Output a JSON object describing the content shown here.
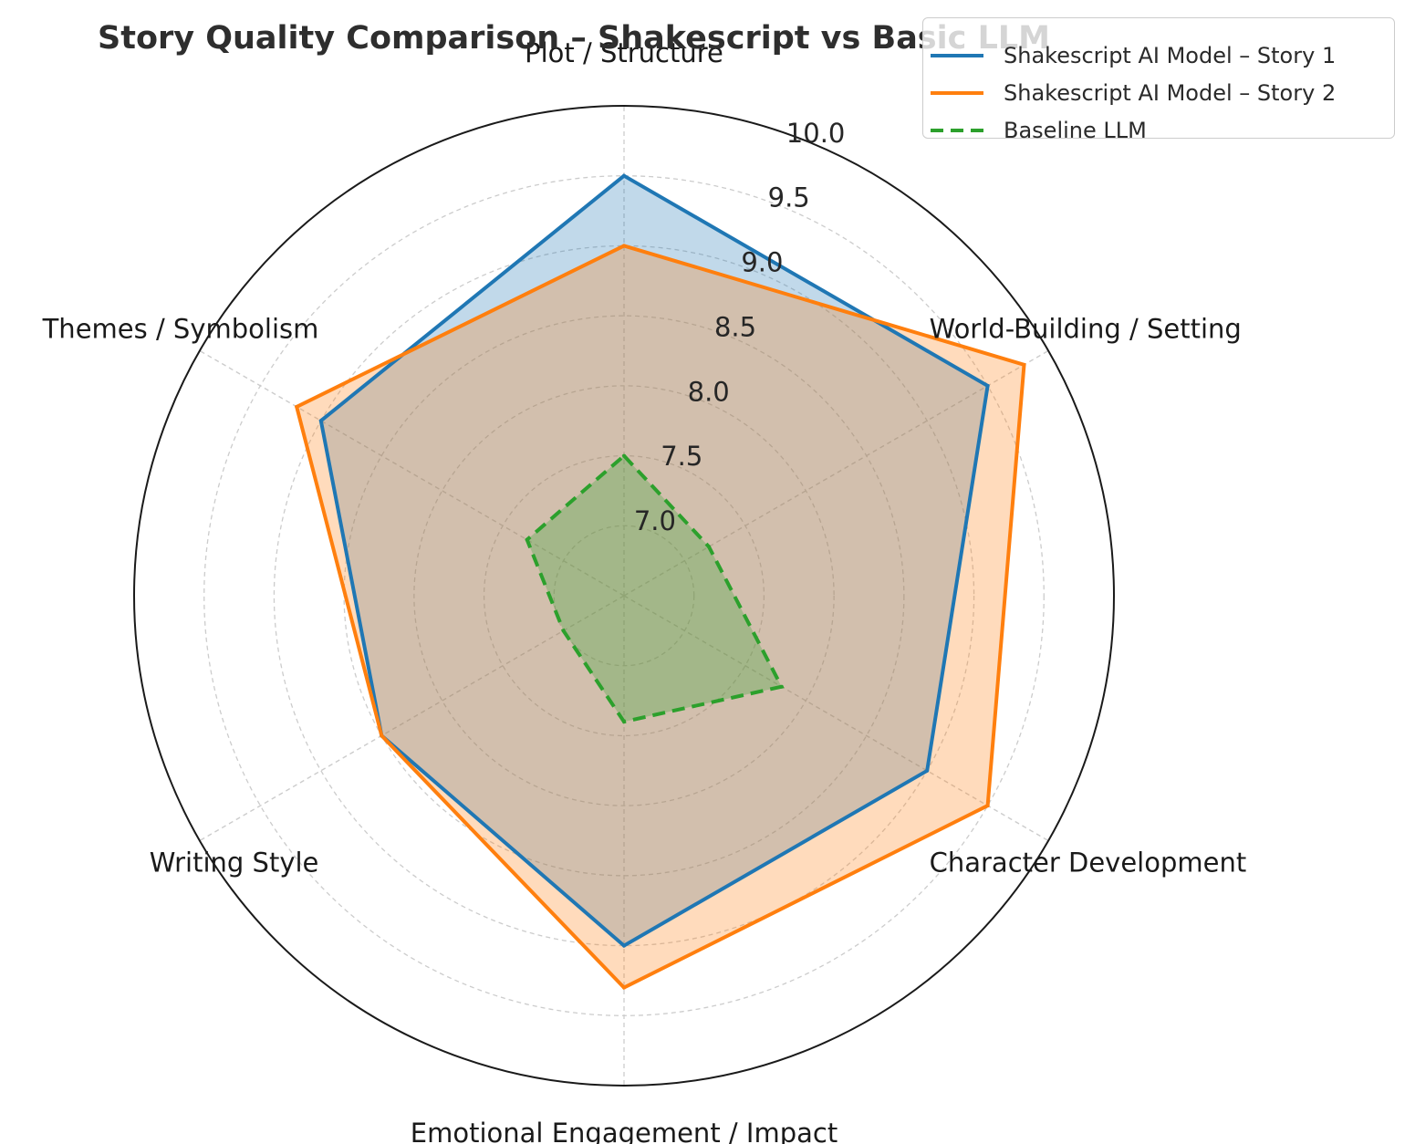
{
  "chart_data": {
    "type": "radar",
    "title": "Story Quality Comparison – Shakescript vs Basic LLM",
    "categories": [
      "Plot / Structure",
      "World-Building / Setting",
      "Character Development",
      "Emotional Engagement / Impact",
      "Writing Style",
      "Themes / Symbolism"
    ],
    "rlim": [
      6.5,
      10.0
    ],
    "r_ticks": [
      "7.0",
      "7.5",
      "8.0",
      "8.5",
      "9.0",
      "9.5",
      "10.0"
    ],
    "series": [
      {
        "name": "Shakescript AI Model – Story 1",
        "color": "#1f77b4",
        "style": "solid",
        "fill": true,
        "values": [
          9.5,
          9.5,
          9.0,
          9.0,
          8.5,
          9.0
        ]
      },
      {
        "name": "Shakescript AI Model – Story 2",
        "color": "#ff7f0e",
        "style": "solid",
        "fill": true,
        "values": [
          9.0,
          9.8,
          9.5,
          9.3,
          8.5,
          9.2
        ]
      },
      {
        "name": "Baseline LLM",
        "color": "#2ca02c",
        "style": "dashed",
        "fill": true,
        "values": [
          7.5,
          7.2,
          7.8,
          7.4,
          7.0,
          7.3
        ]
      }
    ],
    "legend_position": "top-right",
    "grid": true
  }
}
